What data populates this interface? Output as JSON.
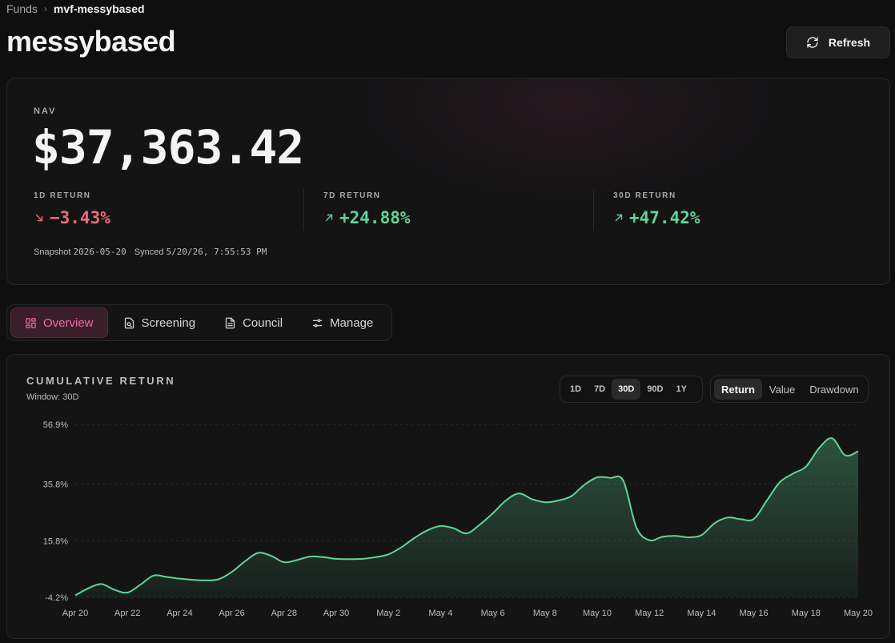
{
  "breadcrumb": {
    "root": "Funds",
    "separator": "›",
    "current": "mvf-messybased"
  },
  "page": {
    "title": "messybased"
  },
  "header": {
    "refresh_label": "Refresh"
  },
  "nav": {
    "label": "NAV",
    "value": "$37,363.42",
    "returns": [
      {
        "label": "1D RETURN",
        "value": "−3.43%",
        "direction": "down"
      },
      {
        "label": "7D RETURN",
        "value": "+24.88%",
        "direction": "up"
      },
      {
        "label": "30D RETURN",
        "value": "+47.42%",
        "direction": "up"
      }
    ],
    "snapshot_label": "Snapshot",
    "snapshot_date": "2026-05-20",
    "synced_label": "Synced",
    "synced_time": "5/20/26, 7:55:53 PM"
  },
  "tabs": [
    {
      "label": "Overview",
      "icon": "grid-icon",
      "active": true
    },
    {
      "label": "Screening",
      "icon": "search-doc-icon",
      "active": false
    },
    {
      "label": "Council",
      "icon": "document-icon",
      "active": false
    },
    {
      "label": "Manage",
      "icon": "sliders-icon",
      "active": false
    }
  ],
  "chart_panel": {
    "title": "CUMULATIVE RETURN",
    "subtitle": "Window: 30D",
    "ranges": [
      {
        "label": "1D",
        "active": false
      },
      {
        "label": "7D",
        "active": false
      },
      {
        "label": "30D",
        "active": true
      },
      {
        "label": "90D",
        "active": false
      },
      {
        "label": "1Y",
        "active": false
      }
    ],
    "modes": [
      {
        "label": "Return",
        "active": true
      },
      {
        "label": "Value",
        "active": false
      },
      {
        "label": "Drawdown",
        "active": false
      }
    ]
  },
  "colors": {
    "accent_pink": "#f06aa3",
    "positive": "#5fd597",
    "negative": "#f0697b",
    "line": "#5fd597"
  },
  "chart_data": {
    "type": "area",
    "title": "",
    "xlabel": "",
    "ylabel": "",
    "ylim": [
      -4.2,
      56.9
    ],
    "y_ticks": [
      "56.9%",
      "35.8%",
      "15.8%",
      "-4.2%"
    ],
    "y_tick_values": [
      56.9,
      35.8,
      15.8,
      -4.2
    ],
    "x_ticks": [
      "Apr 20",
      "Apr 22",
      "Apr 24",
      "Apr 26",
      "Apr 28",
      "Apr 30",
      "May 2",
      "May 4",
      "May 6",
      "May 8",
      "May 10",
      "May 12",
      "May 14",
      "May 16",
      "May 18",
      "May 20"
    ],
    "grid": true,
    "series": [
      {
        "x": [
          0,
          0.5,
          1,
          1.5,
          2,
          2.5,
          3,
          3.5,
          4,
          4.5,
          5,
          5.5,
          6,
          6.5,
          7,
          7.5,
          8,
          8.5,
          9,
          9.5,
          10,
          10.5,
          11,
          11.5,
          12,
          12.5,
          13,
          13.5,
          14,
          14.5,
          15,
          15.5,
          16,
          16.5,
          17,
          17.5,
          18,
          18.5,
          19,
          19.5,
          20,
          20.5,
          21,
          21.5,
          22,
          22.5,
          23,
          23.5,
          24,
          24.5,
          25,
          25.5,
          26,
          26.5,
          27,
          27.5,
          28,
          28.5,
          29,
          29.5,
          30
        ],
        "values": [
          -3.5,
          -1.0,
          0.5,
          -1.5,
          -2.5,
          0.3,
          3.5,
          3.0,
          2.4,
          2.0,
          1.8,
          2.2,
          4.8,
          8.5,
          11.5,
          10.5,
          8.2,
          9.0,
          10.2,
          10.0,
          9.4,
          9.3,
          9.4,
          10.0,
          11.0,
          13.5,
          16.8,
          19.5,
          21.0,
          20.2,
          18.4,
          21.5,
          25.5,
          30.0,
          32.5,
          30.5,
          29.4,
          30.0,
          31.5,
          35.5,
          38.2,
          38.0,
          37.0,
          20.5,
          16.0,
          17.2,
          17.5,
          17.0,
          17.8,
          22.0,
          24.0,
          23.4,
          23.5,
          30.0,
          36.5,
          39.5,
          42.0,
          48.5,
          52.0,
          46.0,
          47.4
        ]
      }
    ]
  }
}
